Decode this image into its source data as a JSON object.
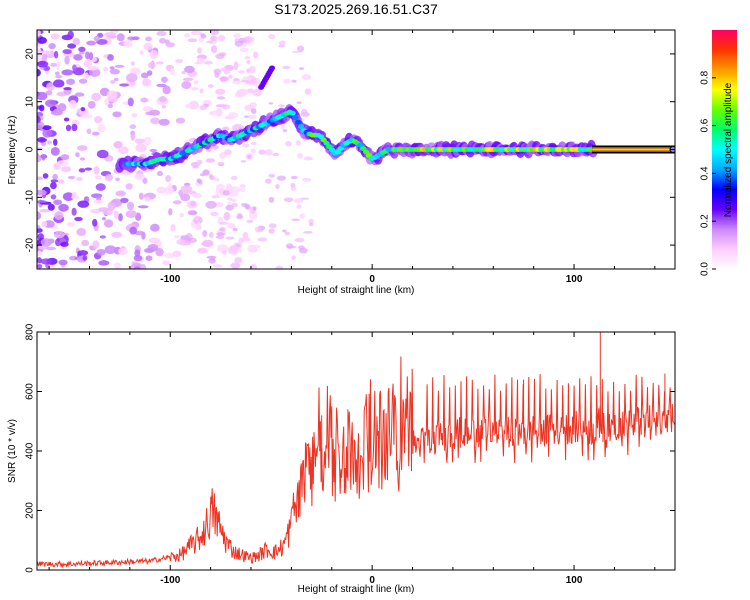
{
  "chart_data": [
    {
      "type": "heatmap",
      "title": "S173.2025.269.16.51.C37",
      "xlabel": "Height of straight line (km)",
      "ylabel": "Frequency (Hz)",
      "xlim": [
        -166,
        150
      ],
      "ylim": [
        -25,
        25
      ],
      "x_ticks": [
        -100,
        0,
        100
      ],
      "y_ticks": [
        -20,
        -10,
        0,
        10,
        20
      ],
      "ridge_x": [
        -121,
        -112,
        -105,
        -100,
        -95,
        -90,
        -85,
        -80,
        -75,
        -70,
        -65,
        -60,
        -55,
        -50,
        -45,
        -40,
        -37,
        -34,
        -30,
        -26,
        -22,
        -18,
        -14,
        -10,
        -6,
        -2,
        0,
        4,
        8,
        12,
        20,
        40,
        60,
        80,
        100,
        110,
        150
      ],
      "ridge_y": [
        -3,
        -3,
        -2,
        -2,
        -1,
        0,
        1,
        2,
        3,
        2,
        3,
        4,
        5,
        6,
        7,
        8,
        6,
        4,
        3,
        3,
        1,
        -1,
        1,
        2,
        1,
        -1,
        -2,
        -1,
        0,
        0,
        0,
        0,
        0,
        0,
        0,
        0,
        0
      ],
      "colorbar": {
        "label": "Normalized spectral amplitude",
        "range": [
          0,
          1
        ],
        "ticks": [
          "0.0",
          "0.2",
          "0.4",
          "0.6",
          "0.8"
        ],
        "colors": [
          "#ffffff",
          "#ffccff",
          "#cc88ff",
          "#6600ff",
          "#0000ff",
          "#00aaff",
          "#00ffff",
          "#00ff66",
          "#66ff00",
          "#ffff00",
          "#ff9900",
          "#ff3300",
          "#ff0066"
        ]
      }
    },
    {
      "type": "line",
      "title": "",
      "xlabel": "Height of straight line (km)",
      "ylabel": "SNR (10 * v/v)",
      "xlim": [
        -166,
        150
      ],
      "ylim": [
        0,
        800
      ],
      "x_ticks": [
        -100,
        0,
        100
      ],
      "y_ticks": [
        0,
        200,
        400,
        600,
        800
      ],
      "color": "#ee3322",
      "series": [
        {
          "name": "SNR",
          "x": [
            -166,
            -150,
            -130,
            -110,
            -95,
            -90,
            -85,
            -82,
            -79,
            -76,
            -72,
            -68,
            -64,
            -60,
            -56,
            -52,
            -48,
            -44,
            -40,
            -37,
            -35,
            -33,
            -30,
            -27,
            -25,
            -23,
            -20,
            -17,
            -15,
            -12,
            -10,
            -8,
            -6,
            -4,
            -2,
            0,
            5,
            10,
            15,
            20,
            25,
            30,
            40,
            50,
            60,
            70,
            80,
            90,
            100,
            105,
            110,
            113,
            116,
            120,
            130,
            140,
            150
          ],
          "y": [
            20,
            20,
            25,
            30,
            50,
            80,
            110,
            150,
            200,
            150,
            90,
            60,
            50,
            40,
            50,
            70,
            60,
            80,
            150,
            200,
            250,
            280,
            330,
            350,
            300,
            320,
            360,
            320,
            340,
            300,
            360,
            300,
            320,
            300,
            330,
            340,
            360,
            380,
            410,
            420,
            430,
            440,
            460,
            460,
            470,
            460,
            470,
            470,
            480,
            480,
            470,
            500,
            460,
            490,
            500,
            500,
            520
          ]
        }
      ],
      "spikes": [
        {
          "x": 113,
          "y": 800
        },
        {
          "x": -25,
          "y": 520
        },
        {
          "x": -12,
          "y": 540
        },
        {
          "x": 75,
          "y": 640
        },
        {
          "x": 145,
          "y": 660
        }
      ]
    }
  ]
}
